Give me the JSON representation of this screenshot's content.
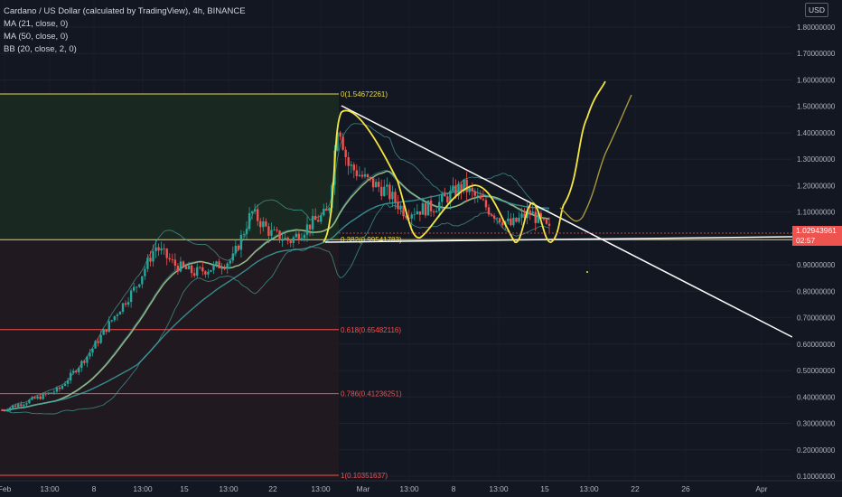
{
  "legend": {
    "title": "Cardano / US Dollar (calculated by TradingView), 4h, BINANCE",
    "ma21": "MA (21, close, 0)",
    "ma50": "MA (50, close, 0)",
    "bb": "BB (20, close, 2, 0)"
  },
  "currency_button": "USD",
  "price_tag": {
    "price": "1.02943961",
    "countdown": "02:57"
  },
  "colors": {
    "background": "#131722",
    "up_candle": "#26a69a",
    "down_candle": "#ef5350",
    "fib_gold": "#e8d84a",
    "fib_red": "#ef5350",
    "drawing_yellow": "#f5e642",
    "drawing_white": "#ffffff",
    "projection_olive": "#a8983a"
  },
  "chart_data": {
    "type": "candlestick",
    "symbol": "ADAUSD",
    "interval": "4h",
    "y_axis": {
      "ylim": [
        0.08,
        1.84
      ],
      "ticks": [
        "1.80000000",
        "1.70000000",
        "1.60000000",
        "1.50000000",
        "1.40000000",
        "1.30000000",
        "1.20000000",
        "1.10000000",
        "1.00000000",
        "0.90000000",
        "0.80000000",
        "0.70000000",
        "0.60000000",
        "0.50000000",
        "0.40000000",
        "0.30000000",
        "0.20000000",
        "0.10000000"
      ]
    },
    "x_axis": {
      "ticks": [
        "Feb",
        "13:00",
        "8",
        "13:00",
        "15",
        "13:00",
        "22",
        "13:00",
        "Mar",
        "13:00",
        "8",
        "13:00",
        "15",
        "13:00",
        "22",
        "26",
        "Apr"
      ]
    },
    "price_path": [
      {
        "t": 0,
        "p": 0.35
      },
      {
        "t": 8,
        "p": 0.4
      },
      {
        "t": 12,
        "p": 0.43
      },
      {
        "t": 18,
        "p": 0.56
      },
      {
        "t": 24,
        "p": 0.72
      },
      {
        "t": 28,
        "p": 0.82
      },
      {
        "t": 32,
        "p": 0.97
      },
      {
        "t": 36,
        "p": 0.9
      },
      {
        "t": 40,
        "p": 0.87
      },
      {
        "t": 44,
        "p": 0.89
      },
      {
        "t": 48,
        "p": 0.92
      },
      {
        "t": 52,
        "p": 1.1
      },
      {
        "t": 56,
        "p": 1.02
      },
      {
        "t": 60,
        "p": 0.99
      },
      {
        "t": 64,
        "p": 1.05
      },
      {
        "t": 68,
        "p": 1.1
      },
      {
        "t": 70,
        "p": 1.45
      },
      {
        "t": 72,
        "p": 1.28
      },
      {
        "t": 76,
        "p": 1.22
      },
      {
        "t": 80,
        "p": 1.18
      },
      {
        "t": 84,
        "p": 1.1
      },
      {
        "t": 90,
        "p": 1.12
      },
      {
        "t": 96,
        "p": 1.2
      },
      {
        "t": 102,
        "p": 1.1
      },
      {
        "t": 106,
        "p": 1.05
      },
      {
        "t": 110,
        "p": 1.1
      },
      {
        "t": 114,
        "p": 1.03
      }
    ],
    "fibonacci": [
      {
        "label": "0(1.54672261)",
        "price": 1.54672261
      },
      {
        "label": "0.382(0.99541783)",
        "price": 0.99541783
      },
      {
        "label": "0.618(0.65482116)",
        "price": 0.65482116
      },
      {
        "label": "0.786(0.41236251)",
        "price": 0.41236251
      },
      {
        "label": "1(0.10351637)",
        "price": 0.10351637
      }
    ],
    "last_price": 1.02943961
  }
}
